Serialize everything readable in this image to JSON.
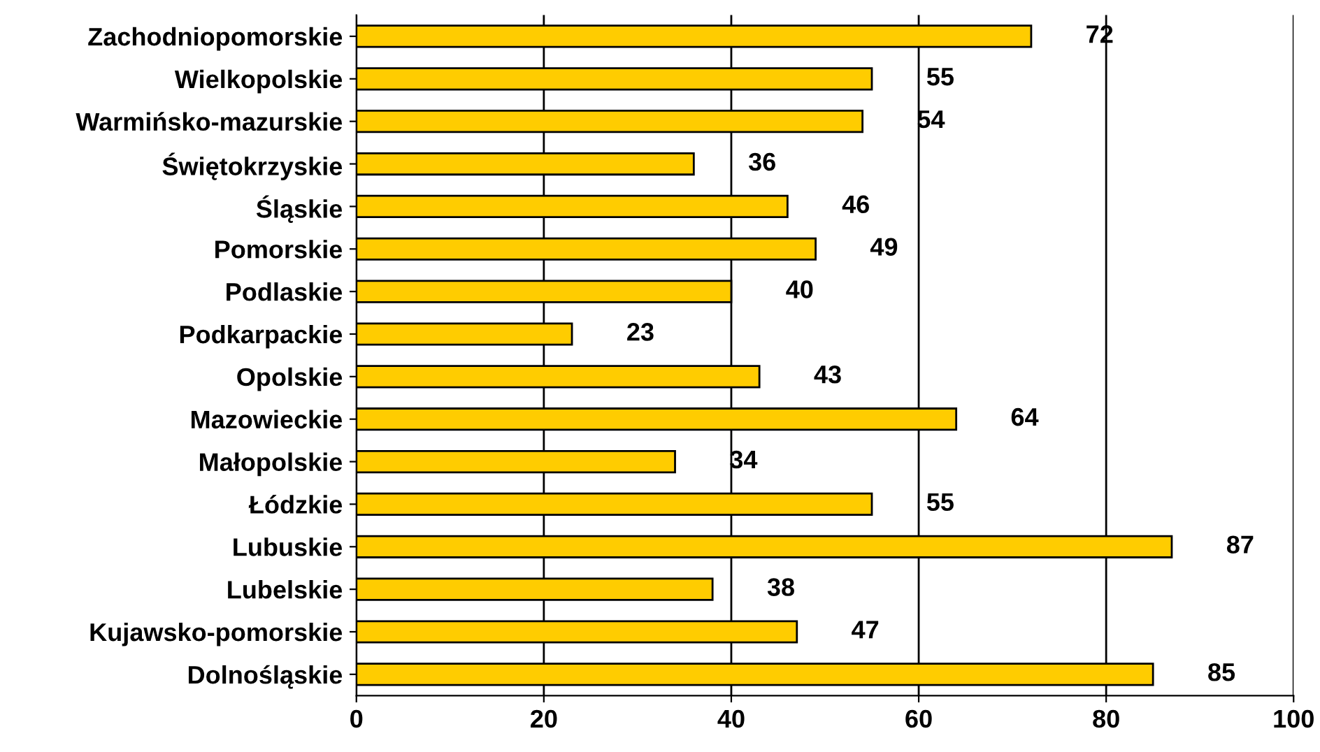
{
  "chart_data": {
    "type": "bar",
    "orientation": "horizontal",
    "categories": [
      "Zachodniopomorskie",
      "Wielkopolskie",
      "Warmińsko-mazurskie",
      "Świętokrzyskie",
      "Śląskie",
      "Pomorskie",
      "Podlaskie",
      "Podkarpackie",
      "Opolskie",
      "Mazowieckie",
      "Małopolskie",
      "Łódzkie",
      "Lubuskie",
      "Lubelskie",
      "Kujawsko-pomorskie",
      "Dolnośląskie"
    ],
    "values": [
      72,
      55,
      54,
      36,
      46,
      49,
      40,
      23,
      43,
      64,
      34,
      55,
      87,
      38,
      47,
      85
    ],
    "color": "#ffcc00",
    "data_labels": true,
    "grid": "x",
    "xlim": [
      0,
      100
    ],
    "xticks": [
      0,
      20,
      40,
      60,
      80,
      100
    ]
  }
}
